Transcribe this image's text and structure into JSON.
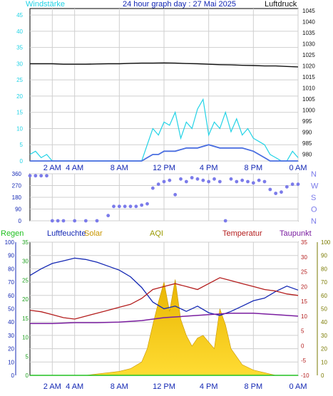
{
  "header": {
    "left": "Windstärke",
    "title": "24 hour graph day : 27 Mai 2025",
    "right": "Luftdruck"
  },
  "colors": {
    "wind": "#22d3e6",
    "pressure": "#111111",
    "direction": "#7b7bea",
    "rain": "#20c020",
    "humidity": "#1428b4",
    "solar": "#e8b400",
    "aqi": "#9a9a00",
    "temperature": "#b41e1e",
    "dewpoint": "#7a1ea0",
    "grid": "#cfcfcf",
    "axis_left_rain": "#1ea01e",
    "axis_mid_humidity": "#1428b4",
    "axis_right_temp": "#b41e1e",
    "axis_right_dew": "#7a1ea0"
  },
  "chart_data": [
    {
      "type": "line",
      "name": "wind-pressure",
      "title": "24 hour graph day : 27 Mai 2025",
      "ylabel": "Windstärke",
      "y2label": "Luftdruck",
      "xticks": [
        "2 AM",
        "4 AM",
        "8 AM",
        "12 PM",
        "4 PM",
        "8 PM",
        "0 AM"
      ],
      "xticks_hours": [
        2,
        4,
        8,
        12,
        16,
        20,
        24
      ],
      "xlim": [
        0,
        24
      ],
      "ylim": [
        0,
        47
      ],
      "yticks": [
        0,
        5,
        10,
        15,
        20,
        25,
        30,
        35,
        40,
        45
      ],
      "y2lim": [
        977,
        1046
      ],
      "y2ticks": [
        980,
        985,
        990,
        995,
        1000,
        1005,
        1010,
        1015,
        1020,
        1025,
        1030,
        1035,
        1040,
        1045
      ],
      "series": [
        {
          "name": "Luftdruck",
          "axis": "right",
          "x": [
            0,
            1,
            2,
            3,
            4,
            5,
            6,
            7,
            8,
            9,
            10,
            11,
            12,
            13,
            14,
            15,
            16,
            17,
            18,
            19,
            20,
            21,
            22,
            23,
            24
          ],
          "y": [
            1021,
            1021,
            1021,
            1020.8,
            1020.8,
            1020.8,
            1020.9,
            1021,
            1021,
            1021.2,
            1021.3,
            1021.3,
            1021.4,
            1021.3,
            1021.1,
            1021,
            1020.8,
            1020.6,
            1020.5,
            1020.3,
            1020.2,
            1020,
            1020,
            1019.8,
            1019.6
          ]
        },
        {
          "name": "Windstärke (Böen)",
          "axis": "left",
          "x": [
            0,
            0.5,
            1,
            1.5,
            2,
            2.5,
            3,
            4,
            5,
            6,
            7,
            8,
            9,
            10,
            10.5,
            11,
            11.5,
            12,
            12.5,
            13,
            13.5,
            14,
            14.5,
            15,
            15.5,
            16,
            16.5,
            17,
            17.5,
            18,
            18.5,
            19,
            19.5,
            20,
            20.5,
            21,
            21.5,
            22,
            22.5,
            23,
            23.5,
            24
          ],
          "y": [
            2,
            3,
            1,
            2,
            0,
            0,
            0,
            0,
            0,
            0,
            0,
            0,
            0,
            0,
            5,
            10,
            8,
            12,
            11,
            15,
            7,
            12,
            10,
            16,
            19,
            8,
            12,
            10,
            15,
            9,
            13,
            8,
            10,
            7,
            6,
            5,
            2,
            1,
            0,
            0,
            3,
            1
          ]
        },
        {
          "name": "Windstärke (Mittel)",
          "axis": "left",
          "x": [
            0,
            1,
            2,
            3,
            4,
            5,
            6,
            7,
            8,
            9,
            10,
            10.5,
            11,
            11.5,
            12,
            13,
            14,
            15,
            16,
            17,
            18,
            19,
            20,
            20.5,
            21,
            21.5,
            22,
            23,
            24
          ],
          "y": [
            0,
            0,
            0,
            0,
            0,
            0,
            0,
            0,
            0,
            0,
            0,
            1,
            2,
            2,
            3,
            3,
            4,
            4,
            5,
            4,
            4,
            4,
            3,
            2,
            1,
            0,
            0,
            0,
            0
          ]
        }
      ]
    },
    {
      "type": "scatter",
      "name": "wind-direction",
      "ylabel_right": [
        "N",
        "W",
        "S",
        "O",
        "N"
      ],
      "yticks": [
        0,
        90,
        180,
        270,
        360
      ],
      "ylim": [
        0,
        360
      ],
      "xlim": [
        0,
        24
      ],
      "x": [
        0,
        0.5,
        1,
        1.5,
        2,
        2.5,
        3,
        4,
        5,
        6,
        7,
        7.5,
        8,
        8.5,
        9,
        9.5,
        10,
        10.5,
        11,
        11.5,
        12,
        12.5,
        13,
        13.5,
        14,
        14.5,
        15,
        15.5,
        16,
        16.5,
        17,
        17.5,
        18,
        18.5,
        19,
        19.5,
        20,
        20.5,
        21,
        21.5,
        22,
        22.5,
        23,
        23.5,
        24
      ],
      "y": [
        345,
        345,
        345,
        345,
        0,
        0,
        0,
        0,
        0,
        0,
        40,
        110,
        110,
        110,
        110,
        110,
        120,
        130,
        250,
        280,
        300,
        310,
        200,
        320,
        300,
        330,
        320,
        310,
        300,
        320,
        300,
        0,
        320,
        300,
        310,
        300,
        290,
        310,
        300,
        240,
        210,
        220,
        260,
        280,
        280
      ]
    },
    {
      "type": "area",
      "name": "weather",
      "xticks": [
        "2 AM",
        "4 AM",
        "8 AM",
        "12 PM",
        "4 PM",
        "8 PM",
        "0 AM"
      ],
      "xticks_hours": [
        2,
        4,
        8,
        12,
        16,
        20,
        24
      ],
      "xlim": [
        0,
        24
      ],
      "legend": [
        "Regen",
        "Luftfeuchte",
        "Solar",
        "AQI",
        "Temperatur",
        "Taupunkt"
      ],
      "axes": {
        "rain": {
          "ticks": [
            0,
            5,
            10,
            15,
            20,
            25,
            30,
            35
          ],
          "lim": [
            0,
            35
          ]
        },
        "humidity": {
          "ticks": [
            0,
            10,
            20,
            30,
            40,
            50,
            60,
            70,
            80,
            90,
            100
          ],
          "lim": [
            0,
            100
          ]
        },
        "temperature": {
          "ticks": [
            -10,
            -5,
            0,
            5,
            10,
            15,
            20,
            25,
            30,
            35
          ],
          "lim": [
            -10,
            35
          ]
        },
        "aqi_pct": {
          "ticks": [
            0,
            10,
            20,
            30,
            40,
            50,
            60,
            70,
            80,
            90,
            100
          ],
          "lim": [
            0,
            100
          ]
        }
      },
      "series": [
        {
          "name": "Luftfeuchte",
          "axis": "humidity",
          "x": [
            0,
            1,
            2,
            3,
            4,
            5,
            6,
            7,
            8,
            9,
            10,
            11,
            12,
            13,
            14,
            15,
            16,
            17,
            18,
            19,
            20,
            21,
            22,
            23,
            24
          ],
          "y": [
            75,
            80,
            84,
            86,
            88,
            87,
            85,
            82,
            79,
            74,
            66,
            55,
            50,
            52,
            48,
            52,
            47,
            45,
            48,
            52,
            56,
            58,
            63,
            67,
            64
          ]
        },
        {
          "name": "Temperatur",
          "axis": "temperature",
          "x": [
            0,
            1,
            2,
            3,
            4,
            5,
            6,
            7,
            8,
            9,
            10,
            11,
            12,
            13,
            14,
            15,
            16,
            17,
            18,
            19,
            20,
            21,
            22,
            23,
            24
          ],
          "y": [
            12,
            11.5,
            10.5,
            9.5,
            9,
            10,
            11,
            12,
            13,
            14,
            16,
            19,
            20,
            21,
            20,
            19,
            21,
            23,
            22,
            21,
            20,
            19,
            18.5,
            17.5,
            17
          ]
        },
        {
          "name": "Taupunkt",
          "axis": "temperature",
          "x": [
            0,
            2,
            4,
            6,
            8,
            10,
            12,
            14,
            16,
            18,
            20,
            22,
            24
          ],
          "y": [
            7.5,
            7.5,
            7.8,
            7.8,
            8,
            8.5,
            9.5,
            10,
            10.5,
            11,
            11,
            10.5,
            10
          ]
        },
        {
          "name": "Solar",
          "axis": "aqi_pct",
          "x": [
            0,
            5,
            6,
            7,
            8,
            9,
            10,
            10.5,
            11,
            11.5,
            12,
            12.5,
            13,
            13.5,
            14,
            14.5,
            15,
            15.5,
            16,
            16.5,
            17,
            17.5,
            18,
            19,
            20,
            21,
            22,
            24
          ],
          "y": [
            0,
            0,
            1,
            2,
            3,
            5,
            10,
            20,
            38,
            55,
            70,
            48,
            72,
            42,
            30,
            22,
            28,
            30,
            25,
            20,
            50,
            38,
            20,
            8,
            4,
            2,
            0,
            0
          ]
        },
        {
          "name": "Regen",
          "axis": "rain",
          "x": [
            0,
            24
          ],
          "y": [
            0,
            0
          ]
        }
      ]
    }
  ]
}
